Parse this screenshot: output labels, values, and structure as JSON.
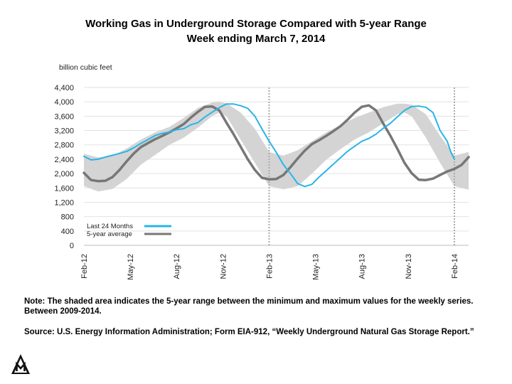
{
  "title": "Working Gas in Underground Storage Compared with 5-year Range",
  "subtitle": "Week ending March 7, 2014",
  "unit_label": "billion cubic feet",
  "note": "Note: The shaded area indicates the 5-year range between the minimum and maximum values for the weekly series. Between 2009-2014.",
  "source": "Source: U.S. Energy Information Administration; Form EIA-912, “Weekly Underground Natural Gas Storage Report.”",
  "logo_icon": "mountain-m-logo-icon",
  "colors": {
    "last24": "#29b5e8",
    "avg": "#777777",
    "range": "#d4d4d4",
    "grid": "#e2e2e2",
    "ref": "#aaaaaa"
  },
  "chart_data": {
    "type": "line",
    "ylim": [
      0,
      4400
    ],
    "yticks": [
      "0",
      "400",
      "800",
      "1,200",
      "1,600",
      "2,000",
      "2,400",
      "2,800",
      "3,200",
      "3,600",
      "4,000",
      "4,400"
    ],
    "xlim": [
      0,
      108
    ],
    "xticks": [
      {
        "label": "Feb-12",
        "x": 0
      },
      {
        "label": "May-12",
        "x": 13
      },
      {
        "label": "Aug-12",
        "x": 26
      },
      {
        "label": "Nov-12",
        "x": 39
      },
      {
        "label": "Feb-13",
        "x": 52
      },
      {
        "label": "May-13",
        "x": 65
      },
      {
        "label": "Aug-13",
        "x": 78
      },
      {
        "label": "Nov-13",
        "x": 91
      },
      {
        "label": "Feb-14",
        "x": 104
      }
    ],
    "reference_lines_x": [
      52,
      104
    ],
    "grid": true,
    "legend_position": "bottom-left",
    "series": [
      {
        "name": "Last 24 Months",
        "x": [
          0,
          2,
          4,
          6,
          8,
          10,
          12,
          14,
          16,
          18,
          20,
          22,
          24,
          26,
          28,
          30,
          32,
          34,
          36,
          38,
          40,
          42,
          44,
          46,
          48,
          50,
          52,
          54,
          56,
          58,
          60,
          62,
          64,
          66,
          68,
          70,
          72,
          74,
          76,
          78,
          80,
          82,
          84,
          86,
          88,
          90,
          92,
          94,
          96,
          98,
          100,
          101,
          102,
          103,
          104
        ],
        "values": [
          2480,
          2380,
          2400,
          2460,
          2510,
          2560,
          2620,
          2720,
          2840,
          2950,
          3060,
          3120,
          3160,
          3220,
          3250,
          3360,
          3420,
          3580,
          3710,
          3840,
          3940,
          3940,
          3890,
          3820,
          3600,
          3240,
          2900,
          2590,
          2250,
          2000,
          1720,
          1640,
          1700,
          1900,
          2080,
          2260,
          2440,
          2620,
          2760,
          2900,
          2980,
          3100,
          3260,
          3400,
          3580,
          3760,
          3870,
          3880,
          3850,
          3700,
          3200,
          3050,
          2900,
          2600,
          2400
        ]
      },
      {
        "name": "5-year average",
        "x": [
          0,
          2,
          4,
          6,
          8,
          10,
          12,
          14,
          16,
          18,
          20,
          22,
          24,
          26,
          28,
          30,
          32,
          34,
          36,
          38,
          40,
          42,
          44,
          46,
          48,
          50,
          52,
          54,
          56,
          58,
          60,
          62,
          64,
          66,
          68,
          70,
          72,
          74,
          76,
          78,
          80,
          82,
          84,
          86,
          88,
          90,
          92,
          94,
          96,
          98,
          100,
          102,
          104,
          106,
          108
        ],
        "values": [
          2020,
          1820,
          1790,
          1800,
          1900,
          2100,
          2340,
          2560,
          2740,
          2850,
          2960,
          3050,
          3150,
          3260,
          3380,
          3560,
          3720,
          3860,
          3870,
          3760,
          3420,
          3100,
          2750,
          2400,
          2100,
          1880,
          1840,
          1850,
          1960,
          2180,
          2420,
          2640,
          2820,
          2930,
          3050,
          3180,
          3320,
          3500,
          3700,
          3860,
          3900,
          3760,
          3400,
          3060,
          2690,
          2300,
          2010,
          1830,
          1820,
          1860,
          1960,
          2060,
          2130,
          2240,
          2460
        ]
      }
    ],
    "range_band": {
      "x": [
        0,
        4,
        8,
        12,
        16,
        20,
        24,
        28,
        32,
        36,
        38,
        40,
        44,
        48,
        52,
        56,
        60,
        64,
        68,
        72,
        76,
        80,
        84,
        88,
        90,
        92,
        96,
        100,
        104,
        108
      ],
      "min": [
        1650,
        1500,
        1570,
        1850,
        2250,
        2520,
        2800,
        3000,
        3280,
        3600,
        3700,
        3600,
        2950,
        2300,
        1650,
        1560,
        1650,
        2000,
        2380,
        2680,
        2950,
        3150,
        3400,
        3650,
        3700,
        3600,
        3000,
        2300,
        1650,
        1550
      ],
      "max": [
        2550,
        2450,
        2500,
        2700,
        2950,
        3150,
        3300,
        3550,
        3830,
        3980,
        4000,
        3960,
        3700,
        3250,
        2600,
        2500,
        2650,
        2900,
        3150,
        3350,
        3550,
        3700,
        3850,
        3950,
        3950,
        3920,
        3650,
        3050,
        2500,
        2600
      ]
    },
    "gridlines": {
      "extends_to_y": 4400,
      "plot_extends_to": "right"
    }
  }
}
